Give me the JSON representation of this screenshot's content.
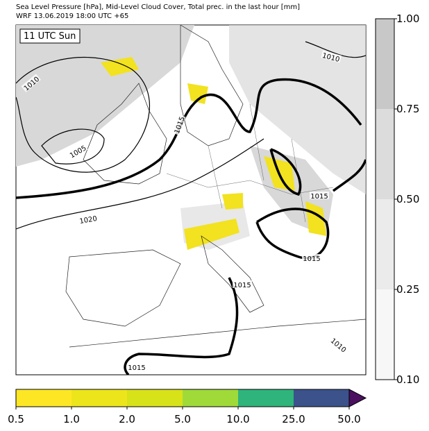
{
  "header": {
    "lines": [
      "Sea Level Pressure [hPa], Mid-Level Cloud Cover, Total prec. in the last hour [mm]",
      "WRF 13.06.2019 18:00 UTC +65"
    ]
  },
  "map": {
    "time_label": "11 UTC Sun",
    "isobar_labels": [
      "1010",
      "1005",
      "1015",
      "1020",
      "1010",
      "1015",
      "1015",
      "1015",
      "1010",
      "1015"
    ]
  },
  "cloud_colorbar": {
    "colors": [
      "#f7f7f7",
      "#ebebeb",
      "#dcdcdc",
      "#c8c8c8"
    ],
    "ticks": [
      {
        "value": 0.1,
        "label": "0.10"
      },
      {
        "value": 0.25,
        "label": "0.25"
      },
      {
        "value": 0.5,
        "label": "0.50"
      },
      {
        "value": 0.75,
        "label": "0.75"
      },
      {
        "value": 1,
        "label": "1.00"
      }
    ]
  },
  "precip_colorbar": {
    "colors": [
      "#fde725",
      "#ece51b",
      "#d8e219",
      "#a0da39",
      "#2fb47c",
      "#3b528b",
      "#4b1060"
    ],
    "ticks": [
      0.5,
      {
        "value": 1,
        "label": "1.0"
      },
      {
        "value": 2,
        "label": "2.0"
      },
      {
        "value": 5,
        "label": "5.0"
      },
      {
        "value": 10,
        "label": "10.0"
      },
      {
        "value": 25,
        "label": "25.0"
      },
      {
        "value": 50,
        "label": "50.0"
      }
    ]
  }
}
